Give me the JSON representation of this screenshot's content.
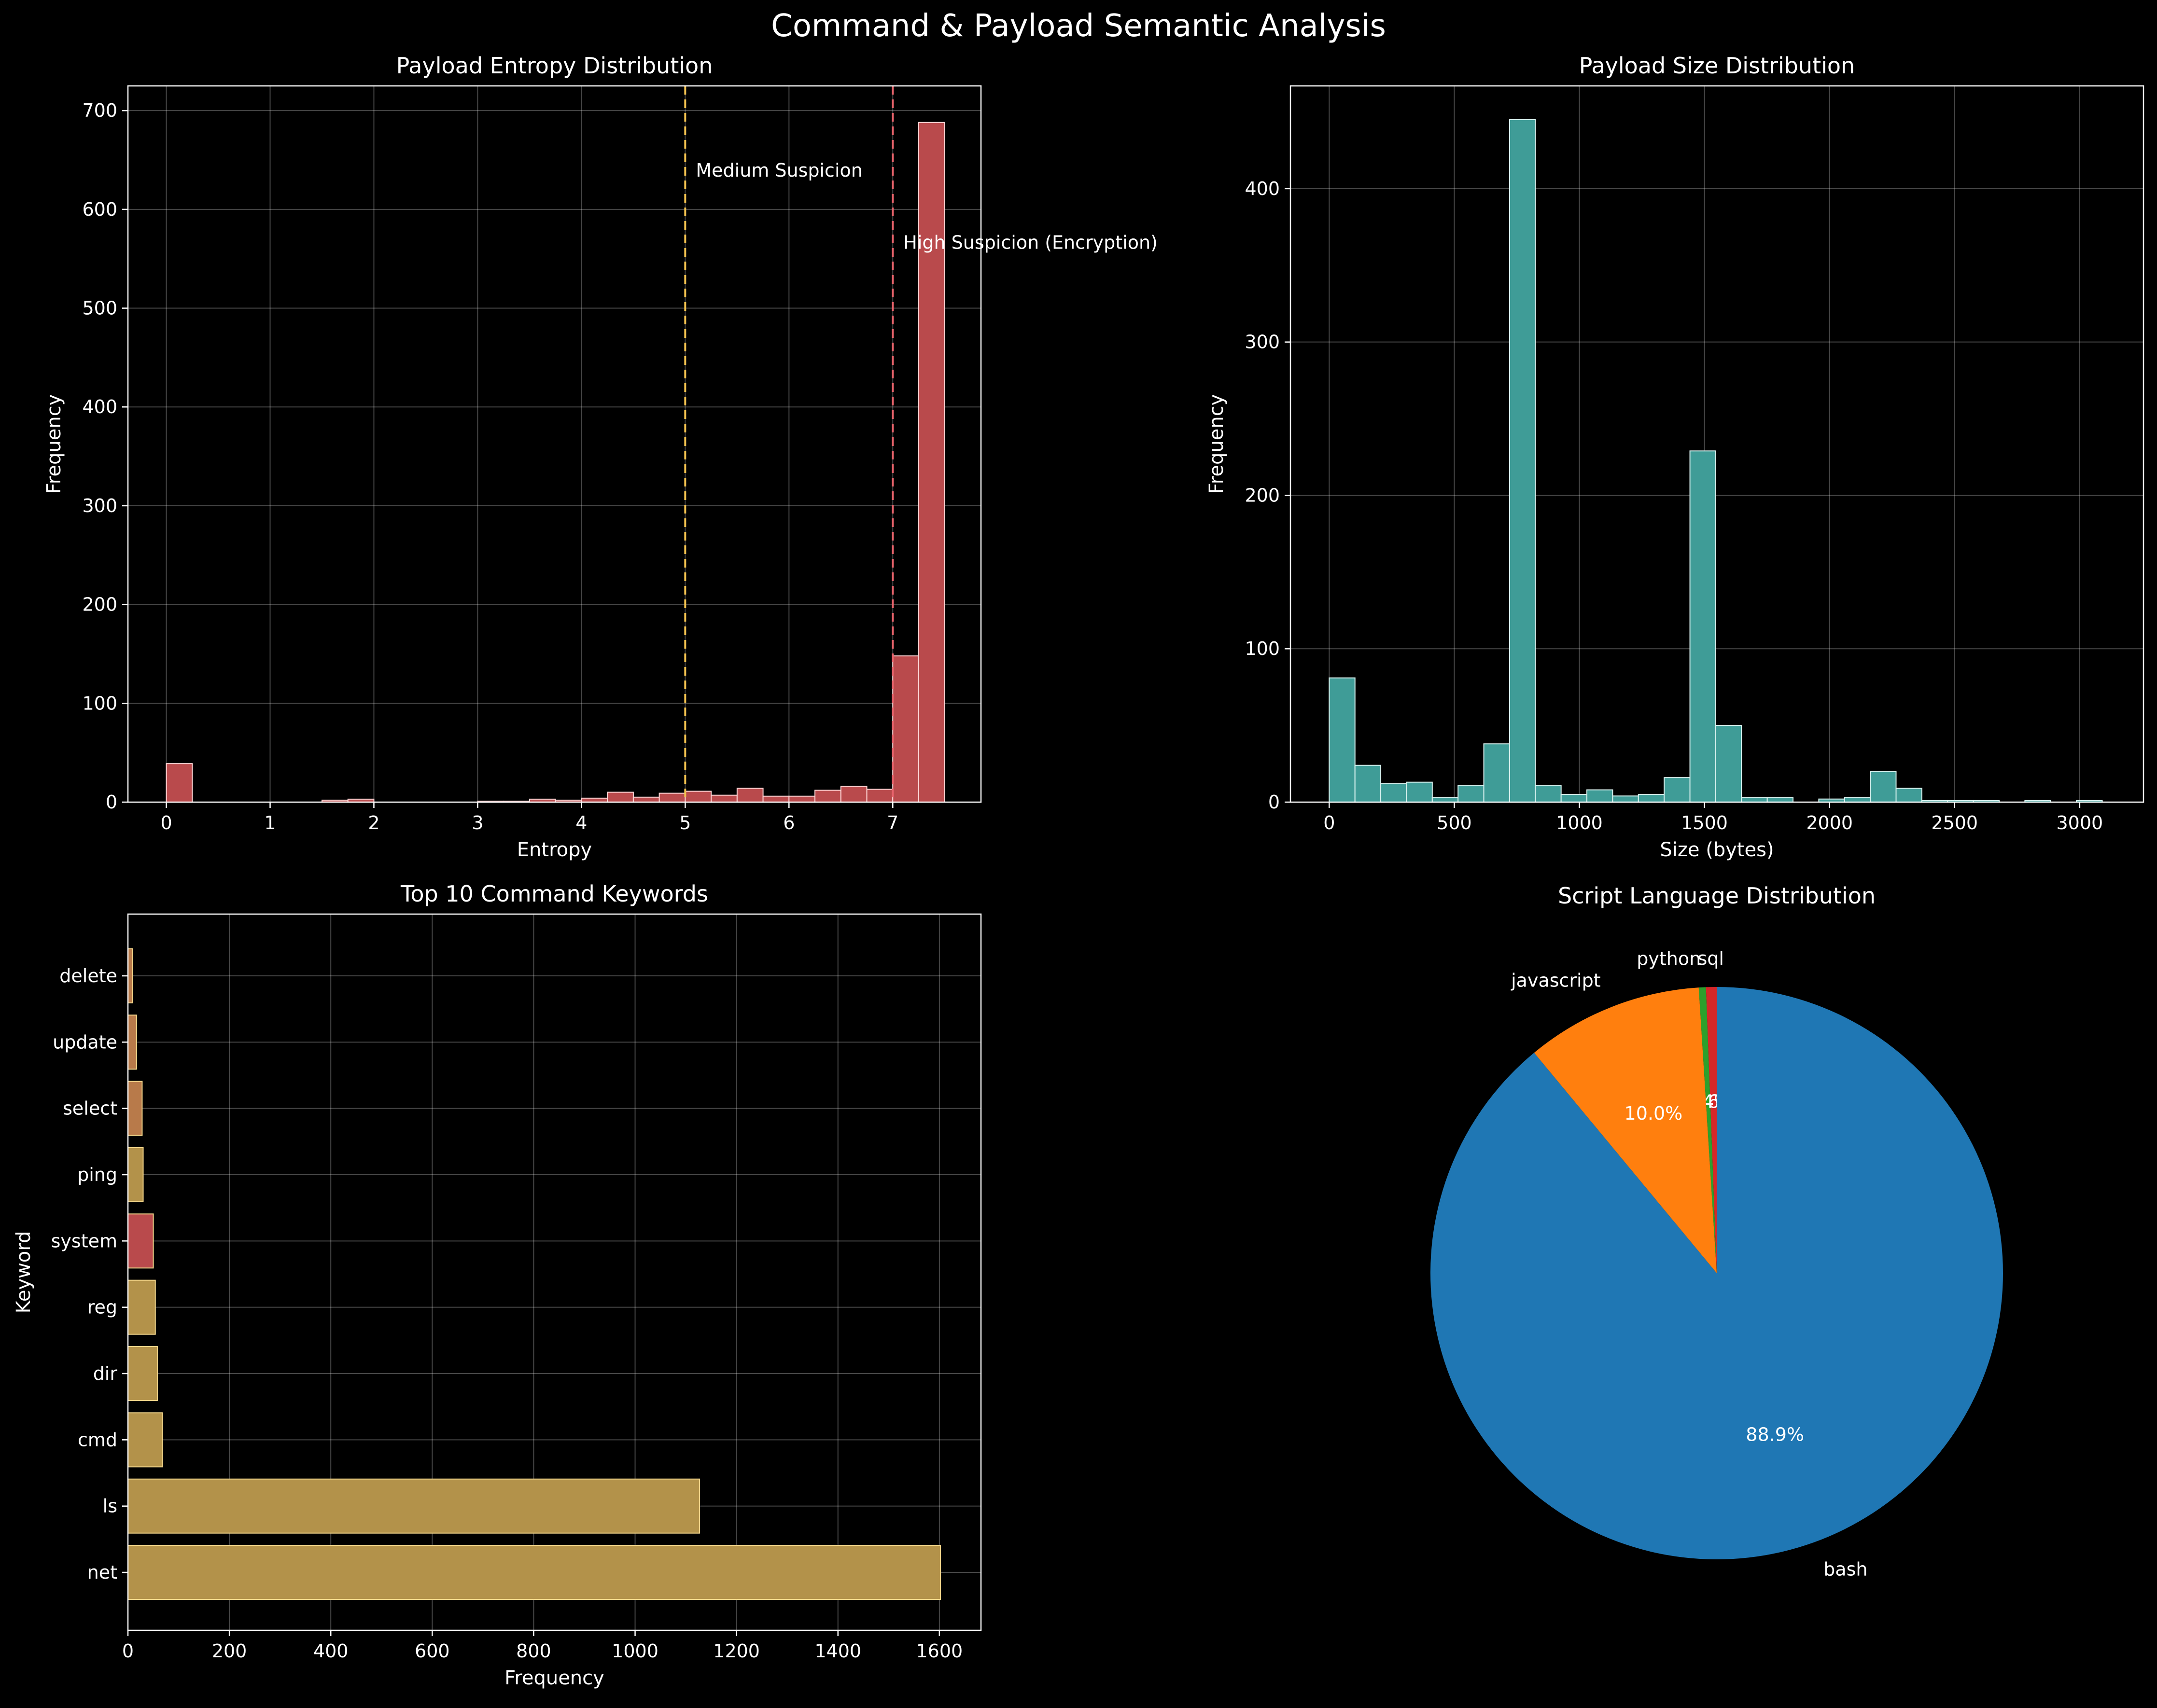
{
  "figure": {
    "title": "Command & Payload Semantic Analysis",
    "background": "#000000",
    "text_color": "#ffffff"
  },
  "chart_data": [
    {
      "id": "entropy",
      "type": "bar",
      "title": "Payload Entropy Distribution",
      "xlabel": "Entropy",
      "ylabel": "Frequency",
      "xlim": [
        -0.37,
        7.85
      ],
      "ylim": [
        0,
        725
      ],
      "xticks": [
        0,
        1,
        2,
        3,
        4,
        5,
        6,
        7
      ],
      "yticks": [
        0,
        100,
        200,
        300,
        400,
        500,
        600,
        700
      ],
      "grid": true,
      "bar_color": "#b94a4c",
      "edge_color": "#ffd7d7",
      "bins": [
        {
          "x0": 0.0,
          "x1": 0.25,
          "count": 39
        },
        {
          "x0": 0.25,
          "x1": 0.5,
          "count": 0
        },
        {
          "x0": 0.5,
          "x1": 0.75,
          "count": 0
        },
        {
          "x0": 0.75,
          "x1": 1.0,
          "count": 0
        },
        {
          "x0": 1.0,
          "x1": 1.25,
          "count": 0
        },
        {
          "x0": 1.25,
          "x1": 1.5,
          "count": 0
        },
        {
          "x0": 1.5,
          "x1": 1.75,
          "count": 2
        },
        {
          "x0": 1.75,
          "x1": 2.0,
          "count": 3
        },
        {
          "x0": 2.0,
          "x1": 2.25,
          "count": 0
        },
        {
          "x0": 2.25,
          "x1": 2.5,
          "count": 0
        },
        {
          "x0": 2.5,
          "x1": 2.75,
          "count": 0
        },
        {
          "x0": 2.75,
          "x1": 3.0,
          "count": 0
        },
        {
          "x0": 3.0,
          "x1": 3.25,
          "count": 1
        },
        {
          "x0": 3.25,
          "x1": 3.5,
          "count": 1
        },
        {
          "x0": 3.5,
          "x1": 3.75,
          "count": 3
        },
        {
          "x0": 3.75,
          "x1": 4.0,
          "count": 2
        },
        {
          "x0": 4.0,
          "x1": 4.25,
          "count": 4
        },
        {
          "x0": 4.25,
          "x1": 4.5,
          "count": 10
        },
        {
          "x0": 4.5,
          "x1": 4.75,
          "count": 5
        },
        {
          "x0": 4.75,
          "x1": 5.0,
          "count": 9
        },
        {
          "x0": 5.0,
          "x1": 5.25,
          "count": 11
        },
        {
          "x0": 5.25,
          "x1": 5.5,
          "count": 7
        },
        {
          "x0": 5.5,
          "x1": 5.75,
          "count": 14
        },
        {
          "x0": 5.75,
          "x1": 6.0,
          "count": 6
        },
        {
          "x0": 6.0,
          "x1": 6.25,
          "count": 6
        },
        {
          "x0": 6.25,
          "x1": 6.5,
          "count": 12
        },
        {
          "x0": 6.5,
          "x1": 6.75,
          "count": 16
        },
        {
          "x0": 6.75,
          "x1": 7.0,
          "count": 13
        },
        {
          "x0": 7.0,
          "x1": 7.25,
          "count": 148
        },
        {
          "x0": 7.25,
          "x1": 7.5,
          "count": 688
        }
      ],
      "vlines": [
        {
          "x": 5,
          "color": "#f2c14e",
          "label": "Medium Suspicion",
          "label_y": 640
        },
        {
          "x": 7,
          "color": "#e8636b",
          "label": "High Suspicion (Encryption)",
          "label_y": 567
        }
      ]
    },
    {
      "id": "size",
      "type": "bar",
      "title": "Payload Size Distribution",
      "xlabel": "Size (bytes)",
      "ylabel": "Frequency",
      "xlim": [
        -155,
        3255
      ],
      "ylim": [
        0,
        467
      ],
      "xticks": [
        0,
        500,
        1000,
        1500,
        2000,
        2500,
        3000
      ],
      "yticks": [
        0,
        100,
        200,
        300,
        400
      ],
      "grid": true,
      "bar_color": "#3f9c97",
      "edge_color": "#d9f2ef",
      "bins": [
        {
          "x0": 0,
          "x1": 103,
          "count": 81
        },
        {
          "x0": 103,
          "x1": 206,
          "count": 24
        },
        {
          "x0": 206,
          "x1": 309,
          "count": 12
        },
        {
          "x0": 309,
          "x1": 412,
          "count": 13
        },
        {
          "x0": 412,
          "x1": 515,
          "count": 3
        },
        {
          "x0": 515,
          "x1": 618,
          "count": 11
        },
        {
          "x0": 618,
          "x1": 721,
          "count": 38
        },
        {
          "x0": 721,
          "x1": 824,
          "count": 445
        },
        {
          "x0": 824,
          "x1": 927,
          "count": 11
        },
        {
          "x0": 927,
          "x1": 1030,
          "count": 5
        },
        {
          "x0": 1030,
          "x1": 1133,
          "count": 8
        },
        {
          "x0": 1133,
          "x1": 1236,
          "count": 4
        },
        {
          "x0": 1236,
          "x1": 1339,
          "count": 5
        },
        {
          "x0": 1339,
          "x1": 1442,
          "count": 16
        },
        {
          "x0": 1442,
          "x1": 1545,
          "count": 229
        },
        {
          "x0": 1545,
          "x1": 1648,
          "count": 50
        },
        {
          "x0": 1648,
          "x1": 1751,
          "count": 3
        },
        {
          "x0": 1751,
          "x1": 1854,
          "count": 3
        },
        {
          "x0": 1854,
          "x1": 1957,
          "count": 0
        },
        {
          "x0": 1957,
          "x1": 2060,
          "count": 2
        },
        {
          "x0": 2060,
          "x1": 2163,
          "count": 3
        },
        {
          "x0": 2163,
          "x1": 2266,
          "count": 20
        },
        {
          "x0": 2266,
          "x1": 2369,
          "count": 9
        },
        {
          "x0": 2369,
          "x1": 2472,
          "count": 1
        },
        {
          "x0": 2472,
          "x1": 2575,
          "count": 1
        },
        {
          "x0": 2575,
          "x1": 2678,
          "count": 1
        },
        {
          "x0": 2678,
          "x1": 2781,
          "count": 0
        },
        {
          "x0": 2781,
          "x1": 2884,
          "count": 1
        },
        {
          "x0": 2884,
          "x1": 2987,
          "count": 0
        },
        {
          "x0": 2987,
          "x1": 3090,
          "count": 1
        }
      ]
    },
    {
      "id": "keywords",
      "type": "bar",
      "orientation": "horizontal",
      "title": "Top 10 Command Keywords",
      "xlabel": "Frequency",
      "ylabel": "Keyword",
      "xlim": [
        0,
        1682
      ],
      "xticks": [
        0,
        200,
        400,
        600,
        800,
        1000,
        1200,
        1400,
        1600
      ],
      "grid": true,
      "categories": [
        "net",
        "ls",
        "cmd",
        "dir",
        "reg",
        "system",
        "ping",
        "select",
        "update",
        "delete"
      ],
      "values": [
        1602,
        1127,
        68,
        58,
        54,
        50,
        30,
        28,
        17,
        9
      ],
      "colors": [
        "#b3924a",
        "#b3924a",
        "#b3924a",
        "#b3924a",
        "#b3924a",
        "#b94a4c",
        "#b3924a",
        "#b87a4a",
        "#b87a4a",
        "#b87a4a"
      ],
      "edge_color": "#f2d58a"
    },
    {
      "id": "languages",
      "type": "pie",
      "title": "Script Language Distribution",
      "start_angle_deg": 90,
      "labels": [
        "sql",
        "python",
        "javascript",
        "bash"
      ],
      "values": [
        0.6,
        0.4,
        10.0,
        88.9
      ],
      "percent_labels": [
        "0.6%",
        "0.4%",
        "10.0%",
        "88.9%"
      ],
      "colors": [
        "#d62728",
        "#2ca02c",
        "#ff7f0e",
        "#1f77b4"
      ]
    }
  ]
}
